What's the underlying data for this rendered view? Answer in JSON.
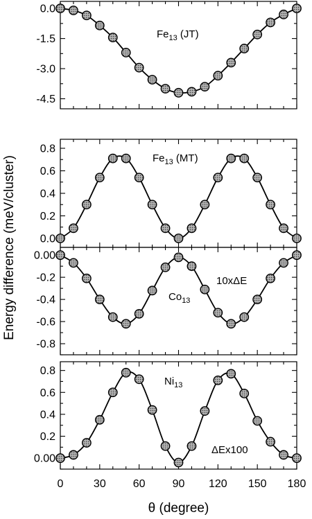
{
  "chart_data": [
    {
      "type": "line",
      "annotations": [
        {
          "text": "Fe",
          "sub": "13",
          "rest": " (JT)"
        }
      ],
      "x": [
        0,
        10,
        20,
        30,
        40,
        50,
        60,
        70,
        80,
        90,
        100,
        110,
        120,
        130,
        140,
        150,
        160,
        170,
        180
      ],
      "y": [
        0.0,
        -0.1,
        -0.35,
        -0.85,
        -1.45,
        -2.2,
        -2.95,
        -3.55,
        -4.0,
        -4.2,
        -4.15,
        -3.9,
        -3.35,
        -2.7,
        -2.0,
        -1.3,
        -0.7,
        -0.3,
        0.0
      ],
      "ylim": [
        -5.0,
        0.35
      ],
      "yticks": [
        0.0,
        -1.5,
        -3.0,
        -4.5
      ],
      "ytick_labels": [
        "0.0",
        "-1.5",
        "-3.0",
        "-4.5"
      ],
      "grid": false
    },
    {
      "type": "line",
      "annotations": [
        {
          "text": "Fe",
          "sub": "13",
          "rest": " (MT)"
        }
      ],
      "x": [
        0,
        10,
        20,
        30,
        40,
        50,
        60,
        70,
        80,
        90,
        100,
        110,
        120,
        130,
        140,
        150,
        160,
        170,
        180
      ],
      "y": [
        0.0,
        0.09,
        0.3,
        0.54,
        0.71,
        0.71,
        0.54,
        0.3,
        0.09,
        0.0,
        0.09,
        0.3,
        0.54,
        0.71,
        0.71,
        0.54,
        0.3,
        0.09,
        0.0
      ],
      "ylim": [
        -0.08,
        0.88
      ],
      "yticks": [
        0.0,
        0.2,
        0.4,
        0.6,
        0.8
      ],
      "ytick_labels": [
        "0.0",
        "0.2",
        "0.4",
        "0.6",
        "0.8"
      ],
      "grid": false
    },
    {
      "type": "line",
      "annotations": [
        {
          "text": "Co",
          "sub": "13",
          "rest": ""
        },
        {
          "text": "10xΔE",
          "sub": "",
          "rest": ""
        }
      ],
      "x": [
        0,
        10,
        20,
        30,
        40,
        50,
        60,
        70,
        80,
        90,
        100,
        110,
        120,
        130,
        140,
        150,
        160,
        170,
        180
      ],
      "y": [
        0.0,
        -0.07,
        -0.21,
        -0.4,
        -0.56,
        -0.62,
        -0.53,
        -0.32,
        -0.11,
        -0.02,
        -0.1,
        -0.31,
        -0.52,
        -0.62,
        -0.56,
        -0.4,
        -0.21,
        -0.07,
        0.0
      ],
      "ylim": [
        -0.9,
        0.07
      ],
      "yticks": [
        0.0,
        -0.2,
        -0.4,
        -0.6,
        -0.8
      ],
      "ytick_labels": [
        "0.00",
        "-0.2",
        "-0.4",
        "-0.6",
        "-0.8"
      ],
      "grid": false
    },
    {
      "type": "line",
      "annotations": [
        {
          "text": "Ni",
          "sub": "13",
          "rest": ""
        },
        {
          "text": "ΔEx100",
          "sub": "",
          "rest": ""
        }
      ],
      "x": [
        0,
        10,
        20,
        30,
        40,
        50,
        60,
        70,
        80,
        90,
        100,
        110,
        120,
        130,
        140,
        150,
        160,
        170,
        180
      ],
      "y": [
        0.0,
        0.03,
        0.14,
        0.35,
        0.6,
        0.78,
        0.72,
        0.44,
        0.11,
        -0.04,
        0.11,
        0.43,
        0.71,
        0.77,
        0.59,
        0.34,
        0.15,
        0.03,
        0.0
      ],
      "ylim": [
        -0.1,
        0.88
      ],
      "yticks": [
        0.0,
        0.2,
        0.4,
        0.6,
        0.8
      ],
      "ytick_labels": [
        "0.00",
        "0.2",
        "0.4",
        "0.6",
        "0.8"
      ],
      "grid": false
    }
  ],
  "x_axis": {
    "range": [
      0,
      180
    ],
    "ticks": [
      0,
      30,
      60,
      90,
      120,
      150,
      180
    ],
    "tick_labels": [
      "0",
      "30",
      "60",
      "90",
      "120",
      "150",
      "180"
    ],
    "minor_step": 10,
    "label": "θ (degree)"
  },
  "y_axis_label": "Energy difference (meV/cluster)"
}
